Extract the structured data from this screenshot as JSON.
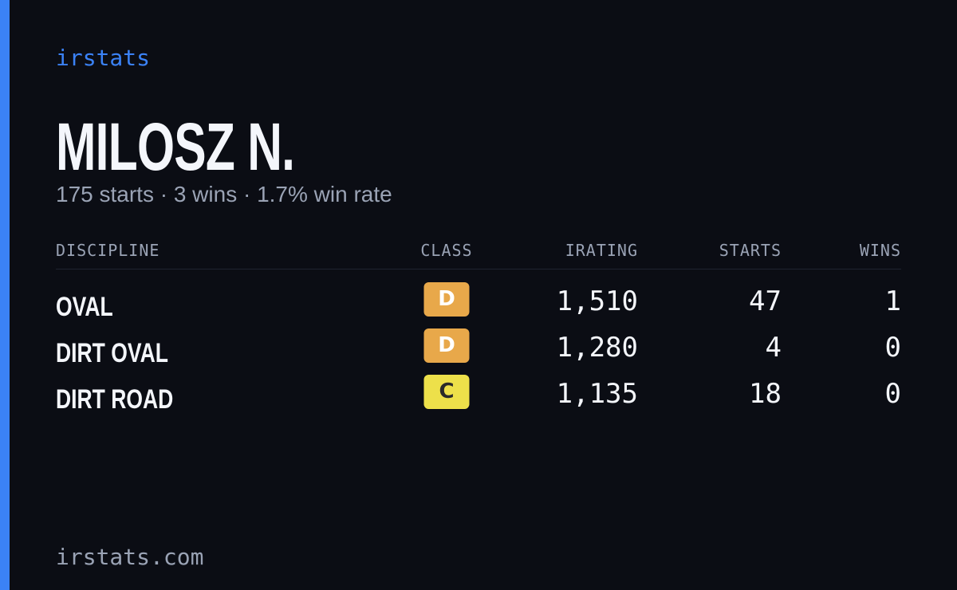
{
  "brand": "irstats",
  "name": "MILOSZ N.",
  "summary": "175 starts · 3 wins · 1.7% win rate",
  "table": {
    "columns": [
      "DISCIPLINE",
      "CLASS",
      "IRATING",
      "STARTS",
      "WINS"
    ],
    "rows": [
      [
        "OVAL",
        "D",
        "1,510",
        "47",
        "1"
      ],
      [
        "DIRT OVAL",
        "D",
        "1,280",
        "4",
        "0"
      ],
      [
        "DIRT ROAD",
        "C",
        "1,135",
        "18",
        "0"
      ]
    ]
  },
  "footer": "irstats.com"
}
